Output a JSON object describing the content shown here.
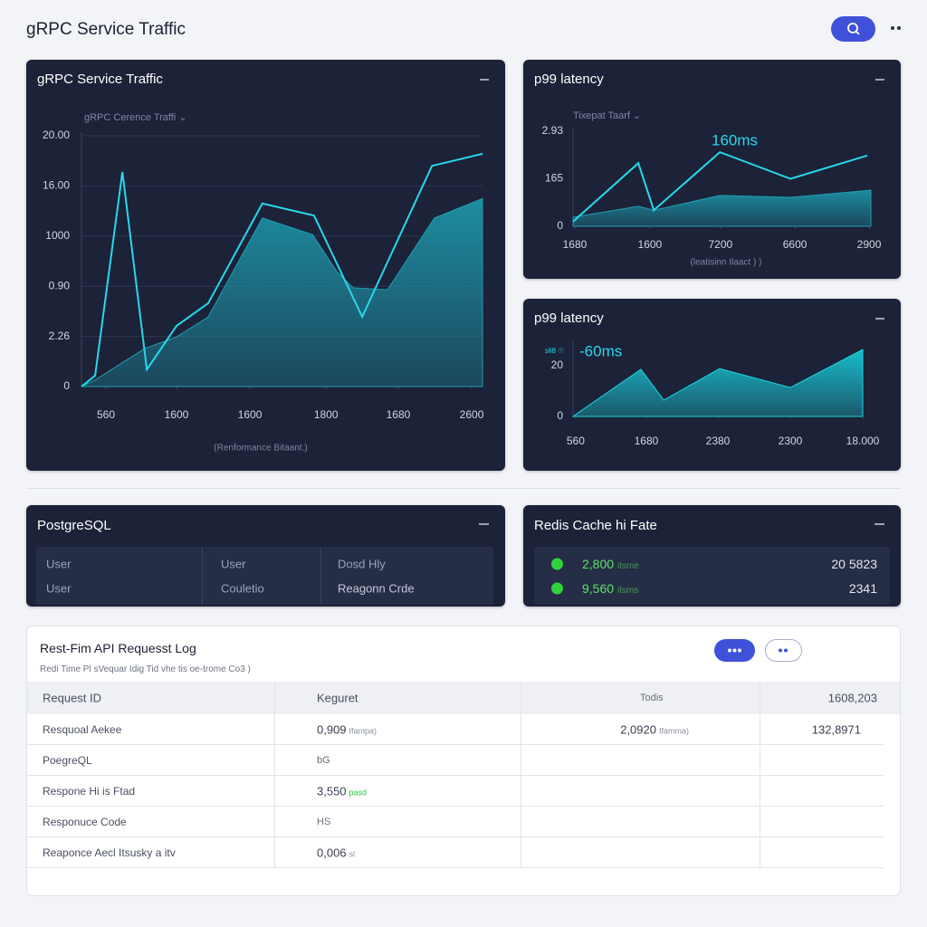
{
  "header": {
    "title": "gRPC Service Traffic"
  },
  "chart_data": [
    {
      "type": "line",
      "title": "gRPC Service Traffic",
      "subtitle": "gRPC Cerence Traffi ⌄",
      "xlabel": "(Renformance Bitaant.)",
      "xlim": [
        0,
        100
      ],
      "ylim": [
        0,
        5
      ],
      "grid": true,
      "yticks": [
        0,
        {
          "value": 1,
          "label": "2.26"
        },
        {
          "value": 2,
          "label": "0.90"
        },
        {
          "value": 3,
          "label": "1000"
        },
        {
          "value": 4,
          "label": "16.00"
        },
        {
          "value": 5,
          "label": "20.00"
        }
      ],
      "xticks": [
        {
          "value": 6.1,
          "label": "560"
        },
        {
          "value": 23.7,
          "label": "1600"
        },
        {
          "value": 42,
          "label": "1600"
        },
        {
          "value": 61,
          "label": "1800"
        },
        {
          "value": 79,
          "label": "1680"
        },
        {
          "value": 97.3,
          "label": "2600"
        }
      ],
      "series": [
        {
          "type": "area",
          "color": "#1d9fb3",
          "x": [
            0,
            3.4,
            15.8,
            23.7,
            31.6,
            45.1,
            57.6,
            63.7,
            67.7,
            76.3,
            88.0,
            100
          ],
          "values": [
            0,
            0.13,
            0.76,
            0.99,
            1.39,
            3.36,
            3.03,
            2.29,
            1.97,
            1.93,
            3.36,
            3.75
          ]
        },
        {
          "type": "line",
          "color": "#27d8ea",
          "x": [
            0,
            3.4,
            10.2,
            16.3,
            23.7,
            31.6,
            45.1,
            58.0,
            70.0,
            87.4,
            100
          ],
          "values": [
            0,
            0.22,
            4.28,
            0.34,
            1.21,
            1.66,
            3.65,
            3.41,
            1.39,
            4.4,
            4.64
          ]
        }
      ]
    },
    {
      "type": "line",
      "title": "p99 latency",
      "subtitle": "Tixepat Taarf ⌄",
      "xlabel": "(leatisinn Ilaact ) )",
      "annotation": "160ms",
      "xlim": [
        0,
        100
      ],
      "ylim": [
        0,
        2
      ],
      "grid": false,
      "yticks": [
        0,
        {
          "value": 1,
          "label": "165"
        },
        {
          "value": 2,
          "label": "2.93"
        }
      ],
      "xticks": [
        {
          "value": 0.6,
          "label": "1680"
        },
        {
          "value": 25.8,
          "label": "1600"
        },
        {
          "value": 49.5,
          "label": "7200"
        },
        {
          "value": 74.5,
          "label": "6600"
        },
        {
          "value": 99.4,
          "label": "2900"
        }
      ],
      "series": [
        {
          "type": "area",
          "color": "#1d9fb3",
          "x": [
            0,
            21.9,
            27.1,
            49.3,
            73.0,
            100
          ],
          "values": [
            0.19,
            0.42,
            0.34,
            0.65,
            0.61,
            0.76
          ]
        },
        {
          "type": "line",
          "color": "#27d8ea",
          "x": [
            0,
            21.9,
            27.1,
            49.3,
            73.0,
            98.8
          ],
          "values": [
            0.1,
            1.33,
            0.34,
            1.56,
            1.0,
            1.49
          ]
        }
      ]
    },
    {
      "type": "area",
      "title": "p99 latency",
      "annotation": "-60ms",
      "annotation_note": "sli8 ☉",
      "xlim": [
        0,
        100
      ],
      "ylim": [
        0,
        28
      ],
      "grid": false,
      "yticks": [
        0,
        20
      ],
      "xticks": [
        {
          "value": 0.9,
          "label": "560"
        },
        {
          "value": 25.3,
          "label": "1680"
        },
        {
          "value": 50,
          "label": "2380"
        },
        {
          "value": 75,
          "label": "2300"
        },
        {
          "value": 100,
          "label": "18.000"
        }
      ],
      "series": [
        {
          "type": "area",
          "color": "#18d8e6",
          "x": [
            0,
            23.4,
            31.3,
            50.6,
            75,
            100
          ],
          "values": [
            0,
            18.6,
            6.4,
            18.9,
            11.4,
            26.4
          ]
        }
      ]
    }
  ],
  "postgres": {
    "title": "PostgreSQL",
    "rows": [
      [
        "User",
        "User",
        "Dosd Hly"
      ],
      [
        "User",
        "Couletio",
        "Reagonn Crde"
      ]
    ]
  },
  "redis": {
    "title": "Redis Cache hi Fate",
    "rows": [
      {
        "value": "2,800",
        "unit": "itsme",
        "right": "20 5823"
      },
      {
        "value": "9,560",
        "unit": "itsms",
        "right": "2341"
      }
    ]
  },
  "log": {
    "title": "Rest-Fim API Requesst Log",
    "subtitle": "Redi Time Pl sVequar Idig Tid vhe tis oe-trome Co3 )",
    "header": [
      "Request ID",
      "Keguret",
      "Todis",
      "1608,203"
    ],
    "rows": [
      [
        "Resquoal Aekee",
        [
          "0,909",
          "Ifampa)"
        ],
        [
          "2,0920",
          "Ifamma)"
        ],
        "132,8971"
      ],
      [
        "PoegreQL",
        "bG"
      ],
      [
        "Respone Hi is Ftad",
        [
          "3,550",
          "pasd"
        ]
      ],
      [
        "Responuce Code",
        "HS"
      ],
      [
        "Reaponce Aecl Itsusky a itv",
        [
          "0,006",
          "sl"
        ]
      ]
    ]
  }
}
